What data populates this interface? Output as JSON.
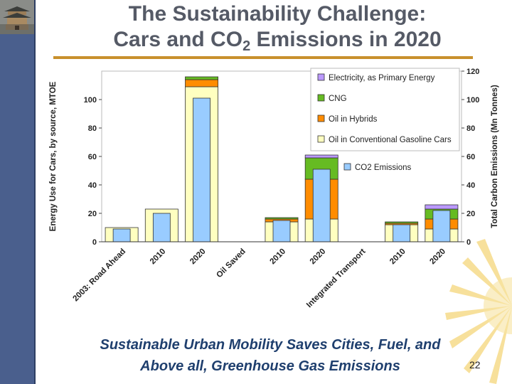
{
  "slide": {
    "title_line1": "The Sustainability Challenge:",
    "title_line2_pre": "Cars and CO",
    "title_line2_sub": "2",
    "title_line2_post": " Emissions in 2020",
    "caption_line1": "Sustainable Urban Mobility Saves Cities, Fuel, and",
    "caption_line2": "Above all, Greenhouse Gas Emissions",
    "page_number": "22"
  },
  "colors": {
    "gasoline": "#ffffc0",
    "hybrids": "#ff8c00",
    "cng": "#66bb22",
    "electricity": "#bb99ff",
    "co2": "#99ccff",
    "sidebar": "#4a5f8d",
    "accent_rule": "#c8902c"
  },
  "chart_data": {
    "type": "bar",
    "stacked": true,
    "ylabel": "Energy Use for Cars, by source, MTOE",
    "y2label": "Total Carbon Emissions (Mn Tonnes)",
    "ylim": [
      0,
      120
    ],
    "y2lim": [
      0,
      120
    ],
    "yticks": [
      0,
      20,
      40,
      60,
      80,
      100
    ],
    "y2ticks": [
      0,
      20,
      40,
      60,
      80,
      100,
      120
    ],
    "categories": [
      "2003: Road Ahead",
      "2010",
      "2020",
      "Oil Saved",
      "2010",
      "2020",
      "Integrated Transport",
      "2010",
      "2020"
    ],
    "series": [
      {
        "name": "Oil in Conventional Gasoline Cars",
        "color_key": "gasoline",
        "values": [
          10,
          23,
          109,
          null,
          14,
          16,
          null,
          12,
          9
        ]
      },
      {
        "name": "Oil in Hybrids",
        "color_key": "hybrids",
        "values": [
          0,
          0,
          5,
          null,
          2,
          28,
          null,
          1,
          7
        ]
      },
      {
        "name": "CNG",
        "color_key": "cng",
        "values": [
          0,
          0,
          2,
          null,
          1,
          15,
          null,
          1,
          7
        ]
      },
      {
        "name": "Electricity, as Primary Energy",
        "color_key": "electricity",
        "values": [
          0,
          0,
          0,
          null,
          0,
          2,
          null,
          0,
          3
        ]
      },
      {
        "name": "CO2 Emissions",
        "color_key": "co2",
        "axis": "right",
        "values": [
          9,
          20,
          101,
          null,
          15,
          51,
          null,
          12,
          22
        ]
      }
    ],
    "legend": [
      {
        "label": "Electricity, as Primary Energy",
        "color_key": "electricity"
      },
      {
        "label": "CNG",
        "color_key": "cng"
      },
      {
        "label": "Oil in Hybrids",
        "color_key": "hybrids"
      },
      {
        "label": "Oil in Conventional Gasoline Cars",
        "color_key": "gasoline"
      }
    ],
    "legend_co2": {
      "label": "CO2 Emissions",
      "color_key": "co2"
    },
    "legend_position": "top-right"
  }
}
